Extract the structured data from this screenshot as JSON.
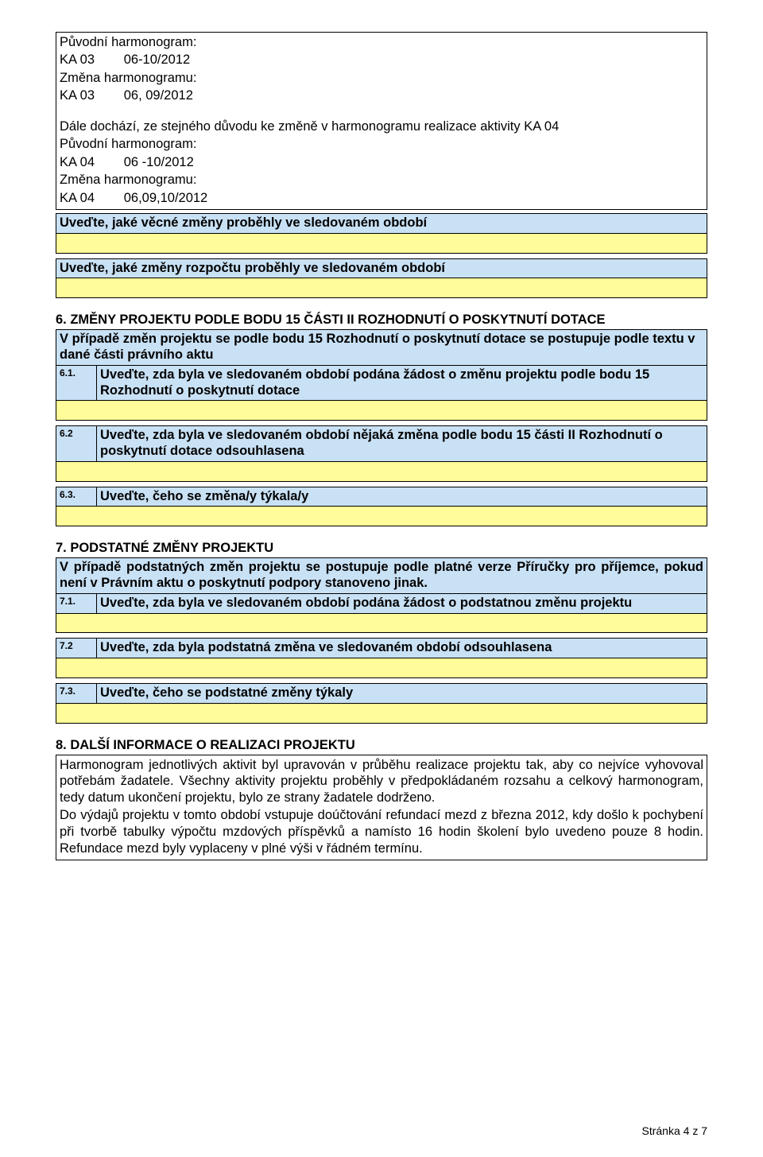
{
  "intro": {
    "l1": "Původní harmonogram:",
    "l2": "KA 03        06-10/2012",
    "l3": "Změna harmonogramu:",
    "l4": "KA 03        06, 09/2012",
    "l5": "Dále dochází, ze stejného důvodu ke změně v harmonogramu realizace aktivity KA 04",
    "l6": "Původní harmonogram:",
    "l7": "KA 04        06 -10/2012",
    "l8": "Změna harmonogramu:",
    "l9": "KA 04        06,09,10/2012"
  },
  "row_uvedte_vec": "Uveďte, jaké věcné změny proběhly ve sledovaném období",
  "row_uvedte_rozp": "Uveďte, jaké změny rozpočtu proběhly ve sledovaném období",
  "sec6": {
    "title_a": "6. ZMĚNY PROJEKTU PODLE BODU 15 ČÁSTI II ROZHODNUTÍ O POSKYTNUTÍ DOTACE",
    "intro": "V případě změn projektu se podle bodu 15 Rozhodnutí o poskytnutí dotace se postupuje podle textu v dané části právního aktu",
    "r1_num": "6.1.",
    "r1_txt": "Uveďte, zda byla ve sledovaném období podána žádost o změnu projektu podle bodu 15 Rozhodnutí o poskytnutí dotace",
    "r2_num": "6.2",
    "r2_txt": "Uveďte, zda byla ve sledovaném období nějaká změna podle bodu 15 části II Rozhodnutí o poskytnutí dotace odsouhlasena",
    "r3_num": "6.3.",
    "r3_txt": "Uveďte, čeho se změna/y týkala/y"
  },
  "sec7": {
    "title": "7. PODSTATNÉ ZMĚNY PROJEKTU",
    "intro": "V případě podstatných změn projektu se postupuje podle platné verze Příručky pro příjemce, pokud není v Právním aktu o poskytnutí podpory stanoveno jinak.",
    "r1_num": "7.1.",
    "r1_txt": "Uveďte, zda byla ve sledovaném období podána žádost o podstatnou změnu projektu",
    "r2_num": "7.2",
    "r2_txt": "Uveďte, zda byla podstatná změna ve sledovaném období odsouhlasena",
    "r3_num": "7.3.",
    "r3_txt": "Uveďte, čeho se podstatné změny týkaly"
  },
  "sec8": {
    "title": "8. DALŠÍ INFORMACE O REALIZACI PROJEKTU",
    "body": "Harmonogram jednotlivých aktivit byl upravován v průběhu realizace projektu tak, aby co nejvíce vyhovoval potřebám žadatele. Všechny aktivity projektu proběhly v předpokládaném rozsahu a celkový harmonogram, tedy datum ukončení projektu, bylo ze strany žadatele dodrženo.\nDo výdajů projektu v tomto období vstupuje doúčtování refundací mezd z března 2012, kdy došlo k pochybení při tvorbě tabulky výpočtu mzdových příspěvků a namísto 16 hodin školení bylo uvedeno pouze 8 hodin. Refundace mezd byly vyplaceny v plné výši v řádném termínu."
  },
  "footer": "Stránka 4 z 7",
  "colors": {
    "header_bg": "#c9e1f5",
    "yellow_bg": "#fffc99"
  }
}
